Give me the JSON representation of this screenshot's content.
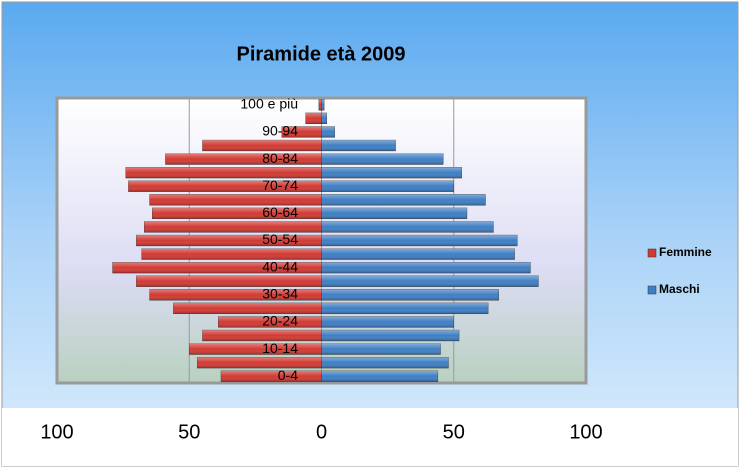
{
  "chart_data": {
    "type": "pyramid",
    "title": "Piramide età 2009",
    "categories": [
      "0-4",
      null,
      "10-14",
      null,
      "20-24",
      null,
      "30-34",
      null,
      "40-44",
      null,
      "50-54",
      null,
      "60-64",
      null,
      "70-74",
      null,
      "80-84",
      null,
      "90-94",
      null,
      "100 e più"
    ],
    "series": [
      {
        "name": "Femmine",
        "color": "#d23a33",
        "values": [
          -38,
          -47,
          -50,
          -45,
          -39,
          -56,
          -65,
          -70,
          -79,
          -68,
          -70,
          -67,
          -64,
          -65,
          -73,
          -74,
          -59,
          -45,
          -15,
          -6,
          -1
        ]
      },
      {
        "name": "Maschi",
        "color": "#3f7fc4",
        "values": [
          44,
          48,
          45,
          52,
          50,
          63,
          67,
          82,
          79,
          73,
          74,
          65,
          55,
          62,
          50,
          53,
          46,
          28,
          5,
          2,
          1
        ]
      }
    ],
    "xlim": [
      -100,
      100
    ],
    "xticks": [
      {
        "value": -100,
        "label": "100"
      },
      {
        "value": -50,
        "label": "50"
      },
      0,
      50,
      100
    ],
    "grid": true,
    "legend": "right"
  }
}
